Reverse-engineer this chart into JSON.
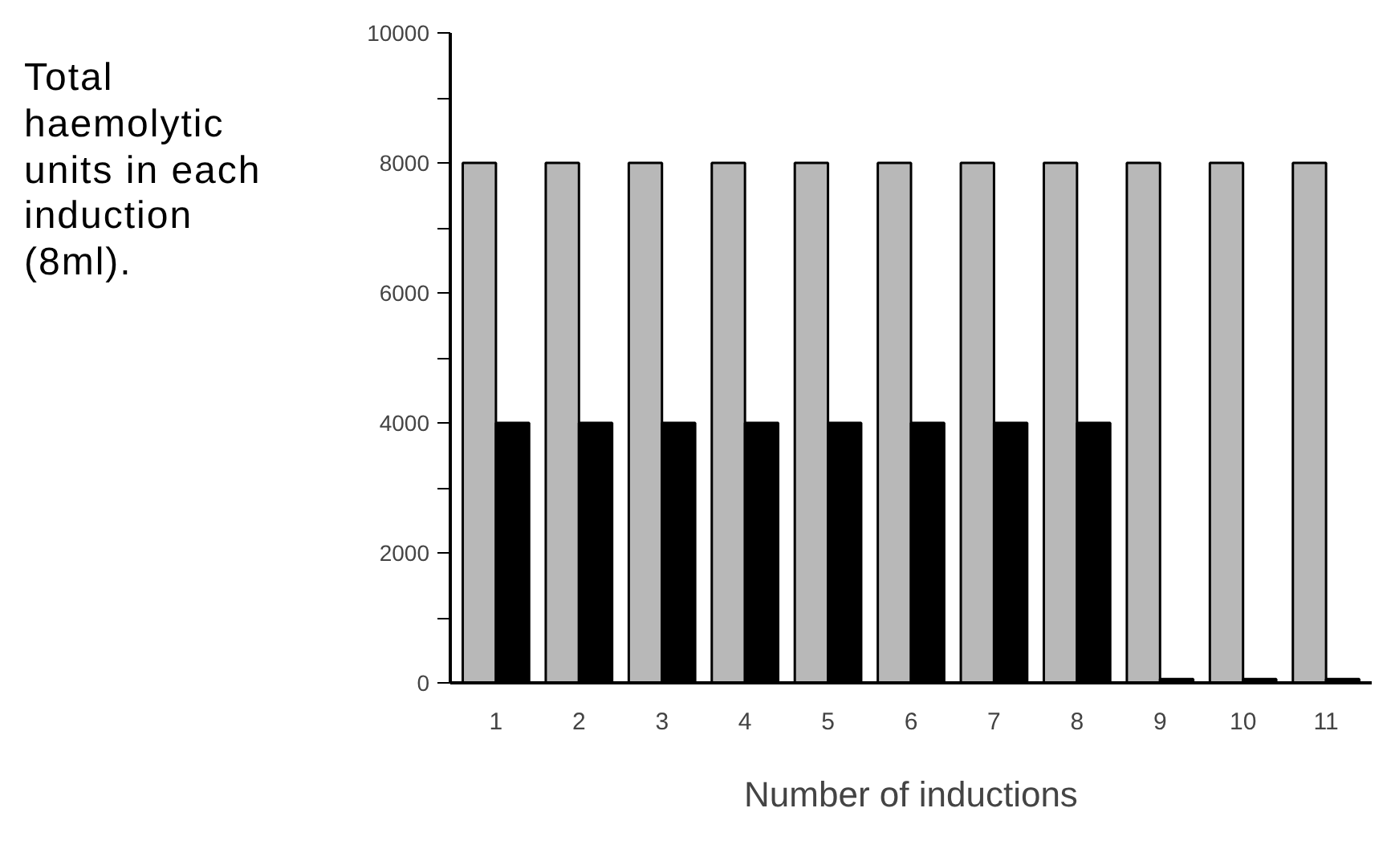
{
  "chart_data": {
    "type": "bar",
    "ylabel": "Total haemolytic units in each induction (8ml).",
    "xlabel": "Number of inductions",
    "categories": [
      "1",
      "2",
      "3",
      "4",
      "5",
      "6",
      "7",
      "8",
      "9",
      "10",
      "11"
    ],
    "series": [
      {
        "color": "#b8b8b8",
        "values": [
          8000,
          8000,
          8000,
          8000,
          8000,
          8000,
          8000,
          8000,
          8000,
          8000,
          8000
        ]
      },
      {
        "color": "#000000",
        "values": [
          4000,
          4000,
          4000,
          4000,
          4000,
          4000,
          4000,
          4000,
          60,
          60,
          60
        ]
      }
    ],
    "ylim": [
      0,
      10000
    ],
    "yticks": [
      0,
      {
        "value": 1000,
        "label": null
      },
      2000,
      {
        "value": 3000,
        "label": null
      },
      4000,
      {
        "value": 5000,
        "label": null
      },
      6000,
      {
        "value": 7000,
        "label": null
      },
      8000,
      {
        "value": 9000,
        "label": null
      },
      10000
    ],
    "grid": false
  }
}
